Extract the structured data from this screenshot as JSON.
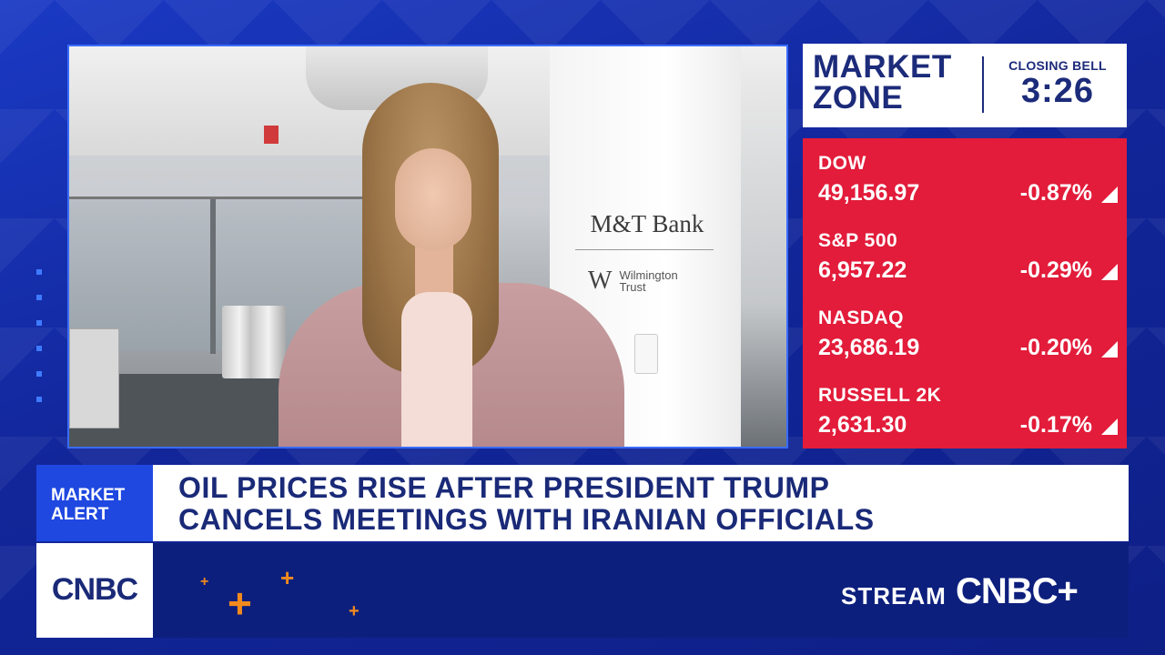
{
  "header": {
    "title_line1": "MARKET",
    "title_line2": "ZONE",
    "session_label": "CLOSING BELL",
    "countdown": "3:26"
  },
  "tickers": [
    {
      "name": "DOW",
      "value": "49,156.97",
      "change": "-0.87%"
    },
    {
      "name": "S&P 500",
      "value": "6,957.22",
      "change": "-0.29%"
    },
    {
      "name": "NASDAQ",
      "value": "23,686.19",
      "change": "-0.20%"
    },
    {
      "name": "RUSSELL 2K",
      "value": "2,631.30",
      "change": "-0.17%"
    }
  ],
  "alert": {
    "tag_line1": "MARKET",
    "tag_line2": "ALERT",
    "headline_line1": "OIL PRICES RISE AFTER PRESIDENT TRUMP",
    "headline_line2": "CANCELS MEETINGS WITH IRANIAN OFFICIALS"
  },
  "footer": {
    "network_logo": "CNBC",
    "stream_label": "STREAM",
    "stream_brand": "CNBC+"
  },
  "video": {
    "backdrop_brand": "M&T Bank",
    "backdrop_sub_mark": "W",
    "backdrop_sub_line1": "Wilmington",
    "backdrop_sub_line2": "Trust"
  },
  "colors": {
    "background": "#142c9e",
    "ticker_down": "#e21c3a",
    "alert_tag": "#1f48e0",
    "headline_text": "#1a2a78",
    "accent_plus": "#f28a1e"
  }
}
